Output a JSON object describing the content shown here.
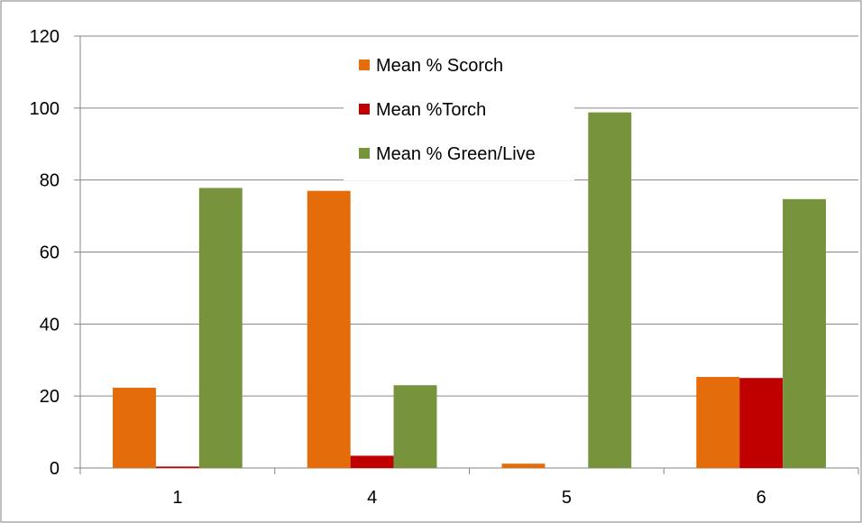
{
  "chart_data": {
    "type": "bar",
    "categories": [
      "1",
      "4",
      "5",
      "6"
    ],
    "series": [
      {
        "name": "Mean % Scorch",
        "values": [
          22.3,
          77,
          1.2,
          25.3
        ],
        "color": "#E46C0A"
      },
      {
        "name": "Mean %Torch",
        "values": [
          0.4,
          3.4,
          0,
          25
        ],
        "color": "#C00000"
      },
      {
        "name": "Mean % Green/Live",
        "values": [
          77.8,
          23,
          98.8,
          74.7
        ],
        "color": "#77933C"
      }
    ],
    "ylim": [
      0,
      120
    ],
    "yticks": [
      "0",
      "20",
      "40",
      "60",
      "80",
      "100",
      "120"
    ],
    "grid": true,
    "legend_position": "top-center",
    "xlabel": "",
    "ylabel": "",
    "title": ""
  }
}
